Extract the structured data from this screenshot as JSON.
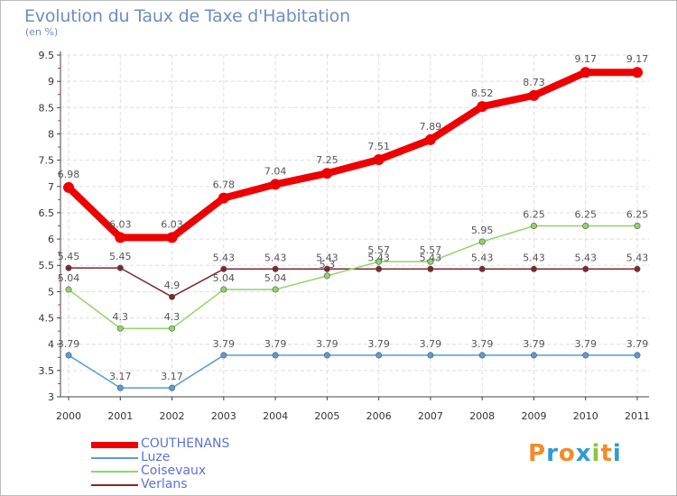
{
  "title": "Evolution du Taux de Taxe d'Habitation",
  "subtitle": "(en %)",
  "logo": {
    "text": "Proxiti",
    "letters": [
      "P",
      "r",
      "o",
      "x",
      "i",
      "t",
      "i"
    ],
    "colors": [
      "#f28c28",
      "#2e9bd6",
      "#f28c28",
      "#2e9bd6",
      "#8cc63f",
      "#f28c28",
      "#2e9bd6"
    ]
  },
  "chart_data": {
    "type": "line",
    "x": [
      "2000",
      "2001",
      "2002",
      "2003",
      "2004",
      "2005",
      "2006",
      "2007",
      "2008",
      "2009",
      "2010",
      "2011"
    ],
    "ylim": [
      3,
      9.5
    ],
    "yticks": [
      "3",
      "3.5",
      "4",
      "4.5",
      "5",
      "5.5",
      "6",
      "6.5",
      "7",
      "7.5",
      "8",
      "8.5",
      "9",
      "9.5"
    ],
    "grid": true,
    "legend_placement": "bottom-left",
    "series": [
      {
        "name": "COUTHENANS",
        "color": "#ee0000",
        "values": [
          6.98,
          6.03,
          6.03,
          6.78,
          7.04,
          7.25,
          7.51,
          7.89,
          8.52,
          8.73,
          9.17,
          9.17
        ],
        "labels": [
          "6.98",
          "6.03",
          "6.03",
          "6.78",
          "7.04",
          "7.25",
          "7.51",
          "7.89",
          "8.52",
          "8.73",
          "9.17",
          "9.17"
        ]
      },
      {
        "name": "Luze",
        "color": "#5b9bd5",
        "values": [
          3.79,
          3.17,
          3.17,
          3.79,
          3.79,
          3.79,
          3.79,
          3.79,
          3.79,
          3.79,
          3.79,
          3.79
        ],
        "labels": [
          "3.79",
          "3.17",
          "3.17",
          "3.79",
          "3.79",
          "3.79",
          "3.79",
          "3.79",
          "3.79",
          "3.79",
          "3.79",
          "3.79"
        ]
      },
      {
        "name": "Coisevaux",
        "color": "#8fd46a",
        "values": [
          5.04,
          4.3,
          4.3,
          5.04,
          5.04,
          5.3,
          5.57,
          5.57,
          5.95,
          6.25,
          6.25,
          6.25
        ],
        "labels": [
          "5.04",
          "4.3",
          "4.3",
          "5.04",
          "5.04",
          "5.3",
          "5.57",
          "5.57",
          "5.95",
          "6.25",
          "6.25",
          "6.25"
        ]
      },
      {
        "name": "Verlans",
        "color": "#7a2a2a",
        "values": [
          5.45,
          5.45,
          4.9,
          5.43,
          5.43,
          5.43,
          5.43,
          5.43,
          5.43,
          5.43,
          5.43,
          5.43
        ],
        "labels": [
          "5.45",
          "5.45",
          "4.9",
          "5.43",
          "5.43",
          "5.43",
          "5.43",
          "5.43",
          "5.43",
          "5.43",
          "5.43",
          "5.43"
        ]
      }
    ]
  }
}
